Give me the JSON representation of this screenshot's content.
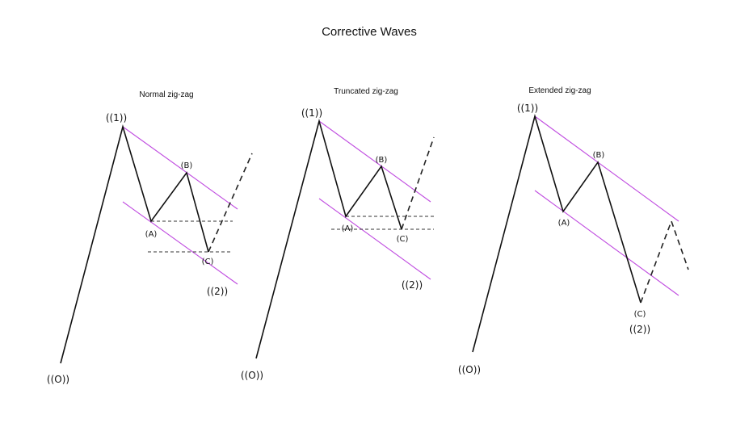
{
  "title": "Corrective Waves",
  "colors": {
    "channel": "#c04de0",
    "wave": "#111111"
  },
  "panels": [
    {
      "subtitle": "Normal zig-zag",
      "labels": {
        "w0": "((O))",
        "w1": "((1))",
        "A": "(A)",
        "B": "(B)",
        "C": "(C)",
        "w2": "((2))"
      }
    },
    {
      "subtitle": "Truncated zig-zag",
      "labels": {
        "w0": "((O))",
        "w1": "((1))",
        "A": "(A)",
        "B": "(B)",
        "C": "(C)",
        "w2": "((2))"
      }
    },
    {
      "subtitle": "Extended zig-zag",
      "labels": {
        "w0": "((O))",
        "w1": "((1))",
        "A": "(A)",
        "B": "(B)",
        "C": "(C)",
        "w2": "((2))"
      }
    }
  ]
}
